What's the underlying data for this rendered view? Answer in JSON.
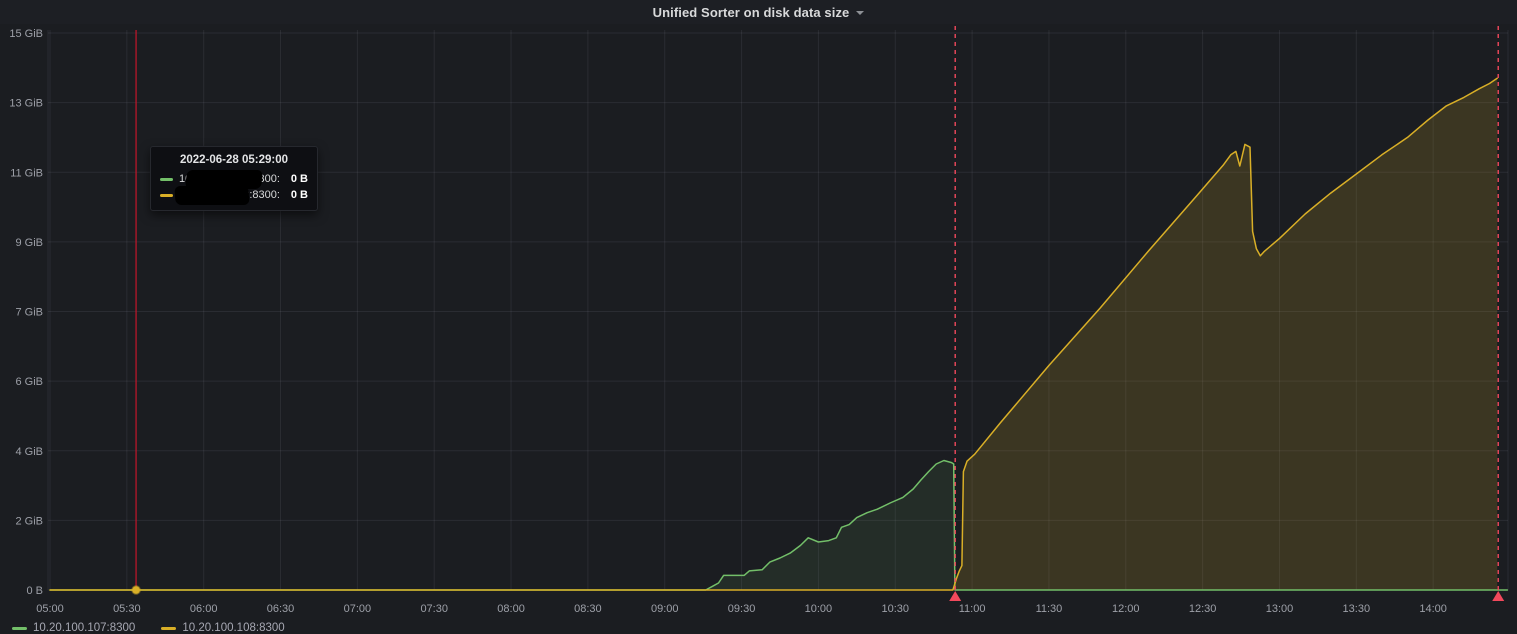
{
  "panel": {
    "title": "Unified Sorter on disk data size"
  },
  "tooltip": {
    "timestamp": "2022-06-28 05:29:00",
    "rows": [
      {
        "name": "10.20.100.107:8300:",
        "value": "0 B",
        "color": "#73BF69",
        "redacted": true
      },
      {
        "name": "10.20.100.108:8300:",
        "value": "0 B",
        "color": "#D9AF27",
        "redacted": true
      }
    ]
  },
  "legend": {
    "items": [
      {
        "label": "10.20.100.107:8300",
        "color": "#73BF69"
      },
      {
        "label": "10.20.100.108:8300",
        "color": "#D9AF27"
      }
    ]
  },
  "chart_data": {
    "type": "area",
    "title": "Unified Sorter on disk data size",
    "x_axis": "time of day 2022-06-28, plot spans ~05:00 to ~14:30",
    "x_ticks": [
      "05:00",
      "05:30",
      "06:00",
      "06:30",
      "07:00",
      "07:30",
      "08:00",
      "08:30",
      "09:00",
      "09:30",
      "10:00",
      "10:30",
      "11:00",
      "11:30",
      "12:00",
      "12:30",
      "13:00",
      "13:30",
      "14:00"
    ],
    "x_tick_step_minutes": 30,
    "x_domain_minutes": [
      0,
      569
    ],
    "y_ticks": [
      {
        "gb": 0,
        "label": "0 B"
      },
      {
        "gb": 2,
        "label": "2 GiB"
      },
      {
        "gb": 4,
        "label": "4 GiB"
      },
      {
        "gb": 6,
        "label": "6 GiB"
      },
      {
        "gb": 8,
        "label": "7 GiB"
      },
      {
        "gb": 10,
        "label": "9 GiB"
      },
      {
        "gb": 12,
        "label": "11 GiB"
      },
      {
        "gb": 14,
        "label": "13 GiB"
      },
      {
        "gb": 16,
        "label": "15 GiB"
      }
    ],
    "ylim_gb": [
      0,
      16.1
    ],
    "grid": true,
    "legend_position": "bottom-left",
    "series": [
      {
        "name": "10.20.100.107:8300",
        "color": "#73BF69",
        "fill": "rgba(115,191,105,0.10)",
        "points_min_gb": [
          [
            0,
            0
          ],
          [
            256,
            0
          ],
          [
            259,
            0.12
          ],
          [
            261,
            0.2
          ],
          [
            263,
            0.42
          ],
          [
            271,
            0.42
          ],
          [
            273,
            0.55
          ],
          [
            278,
            0.58
          ],
          [
            281,
            0.8
          ],
          [
            285,
            0.92
          ],
          [
            289,
            1.06
          ],
          [
            293,
            1.28
          ],
          [
            296,
            1.5
          ],
          [
            300,
            1.38
          ],
          [
            304,
            1.42
          ],
          [
            307,
            1.5
          ],
          [
            309,
            1.8
          ],
          [
            312,
            1.88
          ],
          [
            315,
            2.08
          ],
          [
            319,
            2.22
          ],
          [
            323,
            2.32
          ],
          [
            328,
            2.5
          ],
          [
            333,
            2.66
          ],
          [
            337,
            2.9
          ],
          [
            340,
            3.16
          ],
          [
            343,
            3.4
          ],
          [
            346,
            3.62
          ],
          [
            349,
            3.72
          ],
          [
            352,
            3.66
          ],
          [
            352.8,
            3.62
          ],
          [
            353.3,
            0
          ],
          [
            569,
            0
          ]
        ]
      },
      {
        "name": "10.20.100.108:8300",
        "color": "#D9AF27",
        "fill": "rgba(217,175,39,0.17)",
        "points_min_gb": [
          [
            0,
            0
          ],
          [
            352.5,
            0
          ],
          [
            354,
            0.35
          ],
          [
            355,
            0.55
          ],
          [
            356,
            0.7
          ],
          [
            356.6,
            3.4
          ],
          [
            358,
            3.7
          ],
          [
            361,
            3.9
          ],
          [
            371,
            4.8
          ],
          [
            390,
            6.45
          ],
          [
            410,
            8.1
          ],
          [
            429,
            9.75
          ],
          [
            448,
            11.35
          ],
          [
            458,
            12.2
          ],
          [
            461,
            12.5
          ],
          [
            463,
            12.6
          ],
          [
            464.5,
            12.18
          ],
          [
            466.5,
            12.8
          ],
          [
            468.5,
            12.72
          ],
          [
            469.5,
            10.3
          ],
          [
            471,
            9.8
          ],
          [
            472.5,
            9.6
          ],
          [
            474,
            9.72
          ],
          [
            480,
            10.1
          ],
          [
            490,
            10.8
          ],
          [
            500,
            11.4
          ],
          [
            510,
            11.95
          ],
          [
            520,
            12.5
          ],
          [
            530,
            13.0
          ],
          [
            538,
            13.5
          ],
          [
            545,
            13.9
          ],
          [
            552,
            14.15
          ],
          [
            558,
            14.4
          ],
          [
            562,
            14.55
          ],
          [
            565,
            14.7
          ]
        ]
      }
    ],
    "annotations": {
      "color": "#F2495C",
      "style": "dashed-vertical-with-triangle",
      "vlines_minutes": [
        353.4,
        565.4
      ]
    },
    "crosshair": {
      "minute": 33.6,
      "color": "#C4162A",
      "hover_point_series": "10.20.100.108:8300",
      "hover_point_gb": 0
    }
  }
}
